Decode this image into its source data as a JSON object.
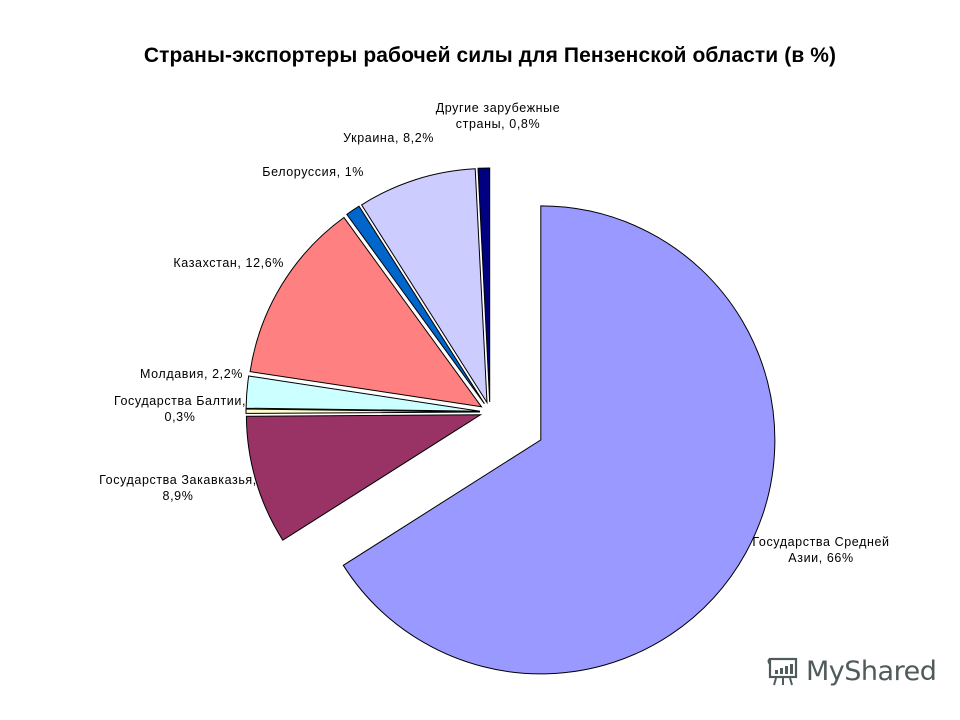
{
  "chart_data": {
    "type": "pie",
    "title": "Страны-экспортеры рабочей силы для Пензенской области (в %)",
    "categories": [
      "Государства Средней Азии",
      "Государства Закавказья",
      "Государства Балтии",
      "Молдавия",
      "Казахстан",
      "Белоруссия",
      "Украина",
      "Другие зарубежные страны"
    ],
    "values": [
      66,
      8.9,
      0.3,
      2.2,
      12.6,
      1,
      8.2,
      0.8
    ],
    "colors": [
      "#9999ff",
      "#993366",
      "#ffffcc",
      "#ccffff",
      "#ff8080",
      "#0066cc",
      "#ccccff",
      "#000080"
    ],
    "data_labels": [
      "Государства Средней Азии, 66%",
      "Государства Закавказья, 8,9%",
      "Государства Балтии, 0,3%",
      "Молдавия, 2,2%",
      "Казахстан, 12,6%",
      "Белоруссия, 1%",
      "Украина, 8,2%",
      "Другие зарубежные страны, 0,8%"
    ],
    "start_angle_deg": 0,
    "direction": "clockwise",
    "exploded": true,
    "legend": "none"
  },
  "labels": {
    "asia_line1": "Государства Средней",
    "asia_line2": "Азии, 66%",
    "caucasus_line1": "Государства Закавказья,",
    "caucasus_line2": "8,9%",
    "baltic_line1": "Государства Балтии,",
    "baltic_line2": "0,3%",
    "moldova": "Молдавия, 2,2%",
    "kazakhstan": "Казахстан, 12,6%",
    "belarus": "Белоруссия, 1%",
    "ukraine": "Украина, 8,2%",
    "other_line1": "Другие зарубежные",
    "other_line2": "страны, 0,8%"
  },
  "watermark": {
    "text": "MyShared"
  }
}
